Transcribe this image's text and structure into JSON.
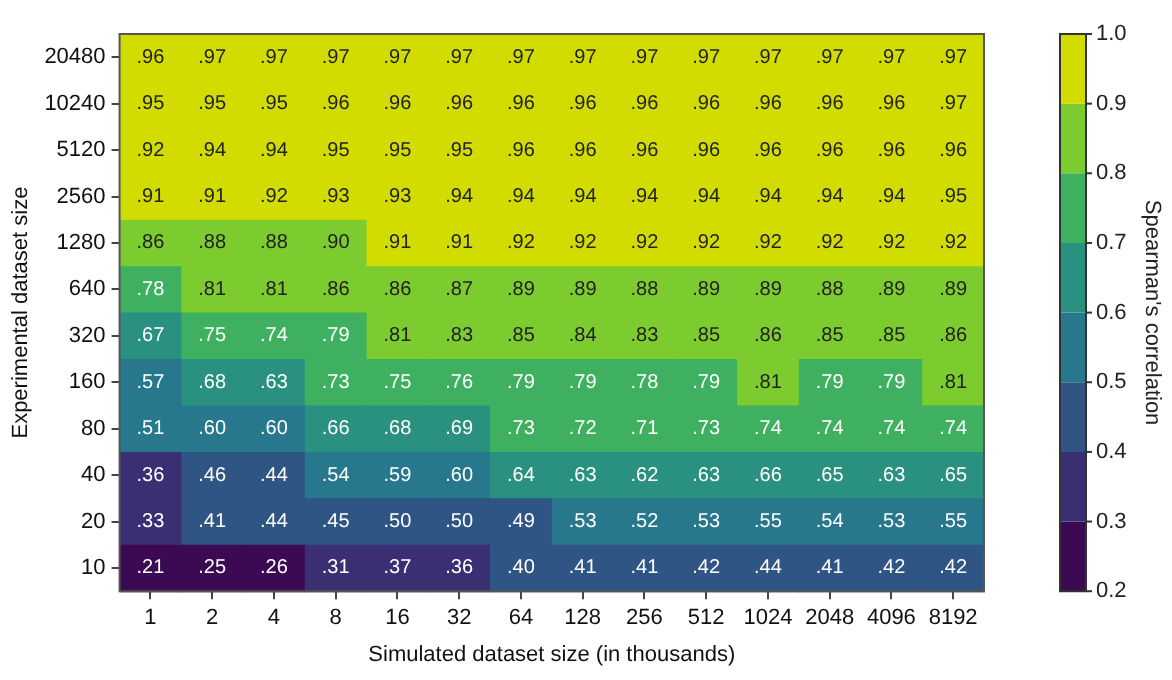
{
  "chart_data": {
    "type": "heatmap",
    "xlabel": "Simulated dataset size (in thousands)",
    "ylabel": "Experimental dataset size",
    "clabel": "Spearman's correlation",
    "categories": [
      "1",
      "2",
      "4",
      "8",
      "16",
      "32",
      "64",
      "128",
      "256",
      "512",
      "1024",
      "2048",
      "4096",
      "8192"
    ],
    "y_categories": [
      "20480",
      "10240",
      "5120",
      "2560",
      "1280",
      "640",
      "320",
      "160",
      "80",
      "40",
      "20",
      "10"
    ],
    "cells": [
      [
        0.96,
        0.97,
        0.97,
        0.97,
        0.97,
        0.97,
        0.97,
        0.97,
        0.97,
        0.97,
        0.97,
        0.97,
        0.97,
        0.97
      ],
      [
        0.95,
        0.95,
        0.95,
        0.96,
        0.96,
        0.96,
        0.96,
        0.96,
        0.96,
        0.96,
        0.96,
        0.96,
        0.96,
        0.97
      ],
      [
        0.92,
        0.94,
        0.94,
        0.95,
        0.95,
        0.95,
        0.96,
        0.96,
        0.96,
        0.96,
        0.96,
        0.96,
        0.96,
        0.96
      ],
      [
        0.91,
        0.91,
        0.92,
        0.93,
        0.93,
        0.94,
        0.94,
        0.94,
        0.94,
        0.94,
        0.94,
        0.94,
        0.94,
        0.95
      ],
      [
        0.86,
        0.88,
        0.88,
        0.9,
        0.91,
        0.91,
        0.92,
        0.92,
        0.92,
        0.92,
        0.92,
        0.92,
        0.92,
        0.92
      ],
      [
        0.78,
        0.81,
        0.81,
        0.86,
        0.86,
        0.87,
        0.89,
        0.89,
        0.88,
        0.89,
        0.89,
        0.88,
        0.89,
        0.89
      ],
      [
        0.67,
        0.75,
        0.74,
        0.79,
        0.81,
        0.83,
        0.85,
        0.84,
        0.83,
        0.85,
        0.86,
        0.85,
        0.85,
        0.86
      ],
      [
        0.57,
        0.68,
        0.63,
        0.73,
        0.75,
        0.76,
        0.79,
        0.79,
        0.78,
        0.79,
        0.81,
        0.79,
        0.79,
        0.81
      ],
      [
        0.51,
        0.6,
        0.6,
        0.66,
        0.68,
        0.69,
        0.73,
        0.72,
        0.71,
        0.73,
        0.74,
        0.74,
        0.74,
        0.74
      ],
      [
        0.36,
        0.46,
        0.44,
        0.54,
        0.59,
        0.6,
        0.64,
        0.63,
        0.62,
        0.63,
        0.66,
        0.65,
        0.63,
        0.65
      ],
      [
        0.33,
        0.41,
        0.44,
        0.45,
        0.5,
        0.5,
        0.49,
        0.53,
        0.52,
        0.53,
        0.55,
        0.54,
        0.53,
        0.55
      ],
      [
        0.21,
        0.25,
        0.26,
        0.31,
        0.37,
        0.36,
        0.4,
        0.41,
        0.41,
        0.42,
        0.44,
        0.41,
        0.42,
        0.42
      ]
    ],
    "cell_labels": [
      [
        ".96",
        ".97",
        ".97",
        ".97",
        ".97",
        ".97",
        ".97",
        ".97",
        ".97",
        ".97",
        ".97",
        ".97",
        ".97",
        ".97"
      ],
      [
        ".95",
        ".95",
        ".95",
        ".96",
        ".96",
        ".96",
        ".96",
        ".96",
        ".96",
        ".96",
        ".96",
        ".96",
        ".96",
        ".97"
      ],
      [
        ".92",
        ".94",
        ".94",
        ".95",
        ".95",
        ".95",
        ".96",
        ".96",
        ".96",
        ".96",
        ".96",
        ".96",
        ".96",
        ".96"
      ],
      [
        ".91",
        ".91",
        ".92",
        ".93",
        ".93",
        ".94",
        ".94",
        ".94",
        ".94",
        ".94",
        ".94",
        ".94",
        ".94",
        ".95"
      ],
      [
        ".86",
        ".88",
        ".88",
        ".90",
        ".91",
        ".91",
        ".92",
        ".92",
        ".92",
        ".92",
        ".92",
        ".92",
        ".92",
        ".92"
      ],
      [
        ".78",
        ".81",
        ".81",
        ".86",
        ".86",
        ".87",
        ".89",
        ".89",
        ".88",
        ".89",
        ".89",
        ".88",
        ".89",
        ".89"
      ],
      [
        ".67",
        ".75",
        ".74",
        ".79",
        ".81",
        ".83",
        ".85",
        ".84",
        ".83",
        ".85",
        ".86",
        ".85",
        ".85",
        ".86"
      ],
      [
        ".57",
        ".68",
        ".63",
        ".73",
        ".75",
        ".76",
        ".79",
        ".79",
        ".78",
        ".79",
        ".81",
        ".79",
        ".79",
        ".81"
      ],
      [
        ".51",
        ".60",
        ".60",
        ".66",
        ".68",
        ".69",
        ".73",
        ".72",
        ".71",
        ".73",
        ".74",
        ".74",
        ".74",
        ".74"
      ],
      [
        ".36",
        ".46",
        ".44",
        ".54",
        ".59",
        ".60",
        ".64",
        ".63",
        ".62",
        ".63",
        ".66",
        ".65",
        ".63",
        ".65"
      ],
      [
        ".33",
        ".41",
        ".44",
        ".45",
        ".50",
        ".50",
        ".49",
        ".53",
        ".52",
        ".53",
        ".55",
        ".54",
        ".53",
        ".55"
      ],
      [
        ".21",
        ".25",
        ".26",
        ".31",
        ".37",
        ".36",
        ".40",
        ".41",
        ".41",
        ".42",
        ".44",
        ".41",
        ".42",
        ".42"
      ]
    ],
    "clim": [
      0.2,
      1.0
    ],
    "cticks": [
      {
        "value": 0.2,
        "label": "0.2"
      },
      {
        "value": 0.3,
        "label": "0.3"
      },
      {
        "value": 0.4,
        "label": "0.4"
      },
      {
        "value": 0.5,
        "label": "0.5"
      },
      {
        "value": 0.6,
        "label": "0.6"
      },
      {
        "value": 0.7,
        "label": "0.7"
      },
      {
        "value": 0.8,
        "label": "0.8"
      },
      {
        "value": 0.9,
        "label": "0.9"
      },
      {
        "value": 1.0,
        "label": "1.0"
      }
    ],
    "colors": [
      "#3b0a52",
      "#3a2f72",
      "#2f5585",
      "#27788c",
      "#2a9180",
      "#3fb060",
      "#7ccc30",
      "#d3dc00"
    ],
    "legend": false
  }
}
